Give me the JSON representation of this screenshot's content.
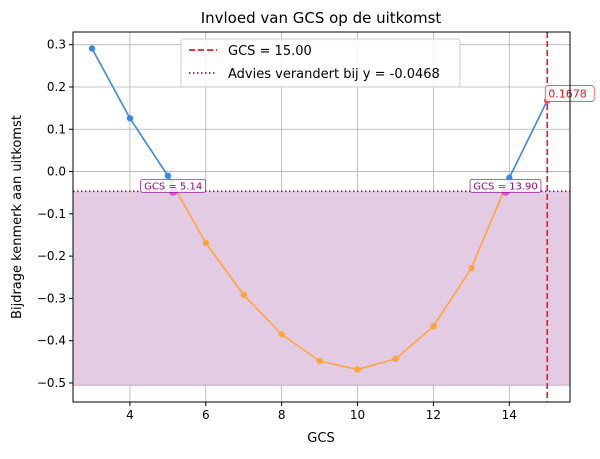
{
  "chart_data": {
    "type": "line",
    "title": "Invloed van GCS op de uitkomst",
    "xlabel": "GCS",
    "ylabel": "Bijdrage kenmerk aan uitkomst",
    "xlim": [
      2.5,
      15.6
    ],
    "ylim": [
      -0.545,
      0.33
    ],
    "xticks": [
      4,
      6,
      8,
      10,
      12,
      14
    ],
    "yticks": [
      0.3,
      0.2,
      0.1,
      0.0,
      -0.1,
      -0.2,
      -0.3,
      -0.4,
      -0.5
    ],
    "xtick_labels": [
      "4",
      "6",
      "8",
      "10",
      "12",
      "14"
    ],
    "ytick_labels": [
      "0.3",
      "0.2",
      "0.1",
      "0.0",
      "−0.1",
      "−0.2",
      "−0.3",
      "−0.4",
      "−0.5"
    ],
    "grid": true,
    "legend_position": "top-center",
    "series": [
      {
        "x": [
          3,
          4,
          5,
          6,
          7,
          8,
          9,
          10,
          11,
          12,
          13,
          14,
          15
        ],
        "y": [
          0.291,
          0.126,
          -0.01,
          -0.169,
          -0.292,
          -0.385,
          -0.448,
          -0.468,
          -0.443,
          -0.366,
          -0.228,
          -0.015,
          0.1678
        ],
        "color_above": "#3b86e6",
        "color_below": "#ffa43d"
      }
    ],
    "threshold_y": -0.0468,
    "shade_range": [
      -0.0468,
      -0.505
    ],
    "vertical_line_x": 15.0,
    "crossings": [
      {
        "x": 5.14,
        "y": -0.0468,
        "label": "GCS = 5.14"
      },
      {
        "x": 13.9,
        "y": -0.0468,
        "label": "GCS = 13.90"
      }
    ],
    "end_point": {
      "x": 15.0,
      "y": 0.1678,
      "label": "0.1678"
    },
    "legend": [
      {
        "label": "GCS = 15.00",
        "style": "dashed",
        "color": "#e8191f"
      },
      {
        "label": "Advies verandert bij y = -0.0468",
        "style": "dotted",
        "color": "#8b0a8b"
      }
    ],
    "colors": {
      "shade": "#e3cbe4",
      "threshold": "#8b0a8b",
      "vline": "#e8191f",
      "crossing_point": "#e040c8",
      "grid": "#b0b0b0"
    }
  }
}
